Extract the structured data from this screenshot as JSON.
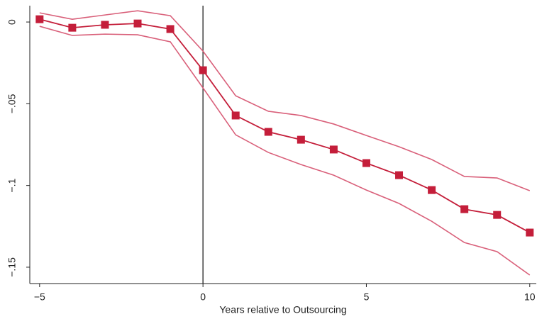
{
  "chart_data": {
    "type": "line",
    "xlabel": "Years relative to Outsourcing",
    "x": [
      -5,
      -4,
      -3,
      -2,
      -1,
      0,
      1,
      2,
      3,
      4,
      5,
      6,
      7,
      8,
      9,
      10
    ],
    "series": [
      {
        "role": "upper",
        "color": "#d9607a",
        "values": [
          0.0056,
          0.0017,
          0.0043,
          0.0069,
          0.0039,
          -0.0178,
          -0.0451,
          -0.0546,
          -0.0572,
          -0.0624,
          -0.0694,
          -0.0763,
          -0.0841,
          -0.0945,
          -0.0954,
          -0.1032
        ]
      },
      {
        "role": "lower",
        "color": "#d9607a",
        "values": [
          -0.0026,
          -0.0082,
          -0.0074,
          -0.0078,
          -0.0121,
          -0.0403,
          -0.069,
          -0.0798,
          -0.0872,
          -0.0937,
          -0.1028,
          -0.111,
          -0.1219,
          -0.1349,
          -0.1405,
          -0.1548
        ]
      },
      {
        "role": "estimate",
        "color": "#c41e3a",
        "marker": "square",
        "values": [
          0.0017,
          -0.0035,
          -0.0017,
          -0.0009,
          -0.0043,
          -0.0295,
          -0.0572,
          -0.0672,
          -0.072,
          -0.078,
          -0.0863,
          -0.0937,
          -0.1028,
          -0.1145,
          -0.118,
          -0.1288
        ]
      }
    ],
    "vline": 0,
    "xlim": [
      -5.3,
      10.2
    ],
    "ylim": [
      -0.16,
      0.01
    ],
    "xticks": [
      {
        "value": -5,
        "label": "−5"
      },
      0,
      5,
      10
    ],
    "yticks": [
      {
        "value": 0,
        "label": "0"
      },
      {
        "value": -0.05,
        "label": "−.05"
      },
      {
        "value": -0.1,
        "label": "−.1"
      },
      {
        "value": -0.15,
        "label": "−.15"
      }
    ]
  }
}
